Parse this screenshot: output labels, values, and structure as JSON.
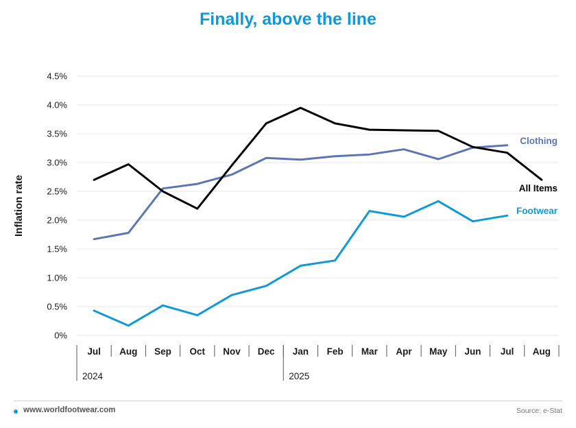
{
  "footer": {
    "url": "www.worldfootwear.com",
    "source": "Source: e-Stat"
  },
  "chart_data": {
    "type": "line",
    "title": "Finally, above the line",
    "ylabel": "Inflation rate",
    "ylim": [
      0,
      4.5
    ],
    "yticks": [
      0,
      0.5,
      1.0,
      1.5,
      2.0,
      2.5,
      3.0,
      3.5,
      4.0,
      4.5
    ],
    "ytick_labels": [
      "0%",
      "0.5%",
      "1.0%",
      "1.5%",
      "2.0%",
      "2.5%",
      "3.0%",
      "3.5%",
      "4.0%",
      "4.5%"
    ],
    "categories": [
      "Jul",
      "Aug",
      "Sep",
      "Oct",
      "Nov",
      "Dec",
      "Jan",
      "Feb",
      "Mar",
      "Apr",
      "May",
      "Jun",
      "Jul",
      "Aug"
    ],
    "year_groups": [
      {
        "label": "2024",
        "start": 0,
        "count": 6
      },
      {
        "label": "2025",
        "start": 6,
        "count": 8
      }
    ],
    "grid": true,
    "series": [
      {
        "name": "All Items",
        "color": "#000000",
        "values": [
          2.7,
          2.97,
          2.5,
          2.2,
          2.95,
          3.68,
          3.95,
          3.68,
          3.57,
          3.56,
          3.55,
          3.27,
          3.17,
          2.7
        ]
      },
      {
        "name": "Clothing",
        "color": "#5b75b5",
        "values": [
          1.67,
          1.78,
          2.55,
          2.63,
          2.79,
          3.08,
          3.05,
          3.11,
          3.14,
          3.23,
          3.06,
          3.26,
          3.3,
          null
        ]
      },
      {
        "name": "Footwear",
        "color": "#0f9ad7",
        "values": [
          0.43,
          0.17,
          0.52,
          0.35,
          0.7,
          0.86,
          1.21,
          1.3,
          2.16,
          2.06,
          2.33,
          1.98,
          2.08,
          null
        ]
      }
    ]
  }
}
